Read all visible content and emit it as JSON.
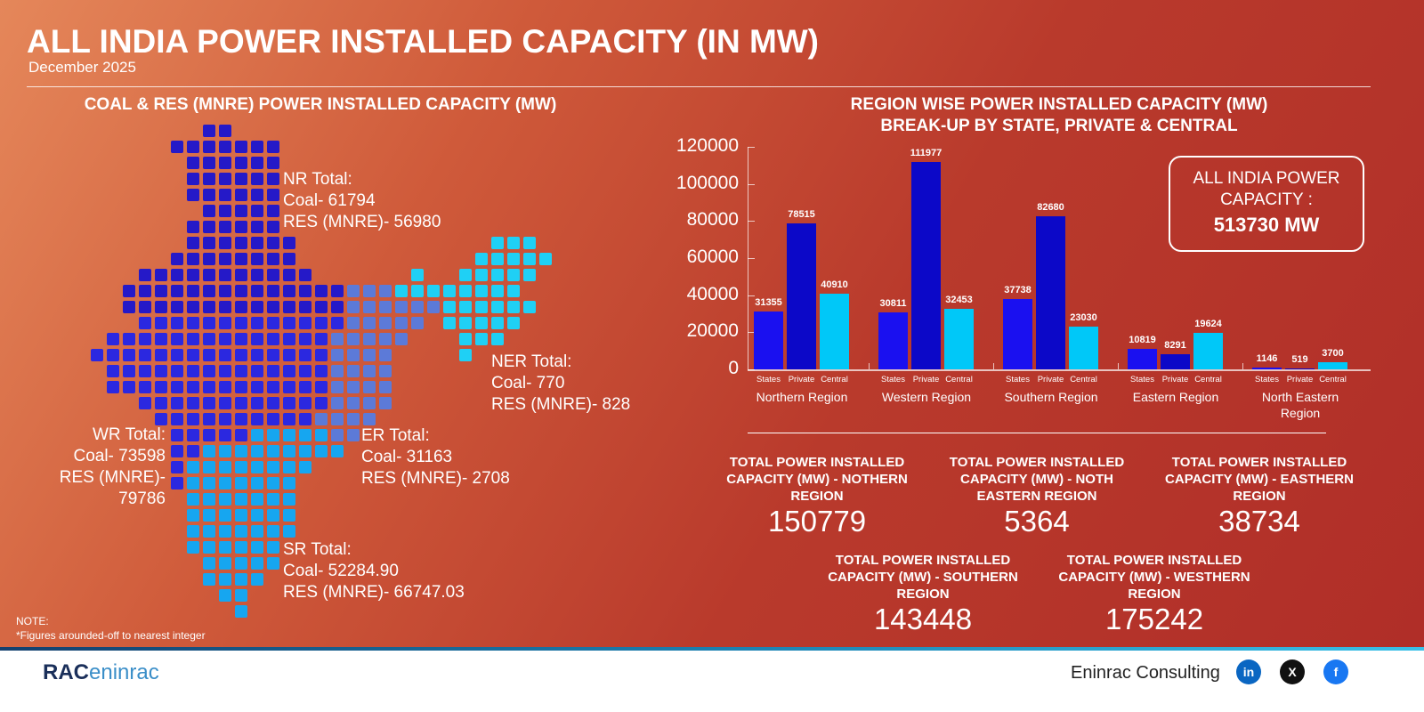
{
  "header": {
    "title": "ALL INDIA POWER INSTALLED CAPACITY (IN MW)",
    "date": "December 2025"
  },
  "map": {
    "title": "COAL & RES (MNRE) POWER INSTALLED CAPACITY (MW)",
    "colors": {
      "NR": "#2519c8",
      "WR": "#2b28e0",
      "ER": "#5c7ad8",
      "NER": "#1fd0f5",
      "SR": "#16a6f0"
    },
    "labels": {
      "nr": [
        "NR Total:",
        "Coal- 61794",
        "RES (MNRE)- 56980"
      ],
      "ner": [
        "NER Total:",
        "Coal- 770",
        "RES (MNRE)- 828"
      ],
      "wr": [
        "WR Total:",
        "Coal- 73598",
        "RES (MNRE)- 79786"
      ],
      "er": [
        "ER Total:",
        "Coal- 31163",
        "RES (MNRE)- 2708"
      ],
      "sr": [
        "SR Total:",
        "Coal- 52284.90",
        "RES (MNRE)- 66747.03"
      ]
    }
  },
  "note": [
    "NOTE:",
    "*Figures arounded-off to nearest integer"
  ],
  "chart_title": [
    "REGION WISE POWER INSTALLED CAPACITY (MW)",
    "BREAK-UP BY STATE, PRIVATE & CENTRAL"
  ],
  "chart_data": {
    "type": "bar",
    "categories": [
      "Northern Region",
      "Western Region",
      "Southern Region",
      "Eastern Region",
      "North Eastern Region"
    ],
    "subcategories": [
      "States",
      "Private",
      "Central"
    ],
    "series": [
      {
        "name": "States",
        "color": "#1a10f0",
        "values": [
          31355,
          30811,
          37738,
          10819,
          1146
        ]
      },
      {
        "name": "Private",
        "color": "#0c08c8",
        "values": [
          78515,
          111977,
          82680,
          8291,
          519
        ]
      },
      {
        "name": "Central",
        "color": "#00c8f8",
        "values": [
          40910,
          32453,
          23030,
          19624,
          3700
        ]
      }
    ],
    "ylim": [
      0,
      120000
    ],
    "yticks": [
      0,
      20000,
      40000,
      60000,
      80000,
      100000,
      120000
    ],
    "grid": false,
    "data_labels": true
  },
  "all_india": {
    "label": "ALL INDIA POWER CAPACITY :",
    "value": "513730 MW"
  },
  "totals": [
    {
      "label": "TOTAL POWER INSTALLED CAPACITY (MW) - NOTHERN REGION",
      "value": "150779"
    },
    {
      "label": "TOTAL POWER INSTALLED CAPACITY (MW) - NOTH EASTERN REGION",
      "value": "5364"
    },
    {
      "label": "TOTAL POWER INSTALLED CAPACITY (MW) - EASTHERN REGION",
      "value": "38734"
    },
    {
      "label": "TOTAL POWER INSTALLED CAPACITY (MW) - SOUTHERN REGION",
      "value": "143448"
    },
    {
      "label": "TOTAL POWER INSTALLED CAPACITY (MW) - WESTHERN REGION",
      "value": "175242"
    }
  ],
  "footer": {
    "logo_a": "RAC",
    "logo_b": "eninrac",
    "brand": "Eninrac Consulting",
    "social": [
      {
        "name": "linkedin",
        "label": "in",
        "color": "#0a66c2"
      },
      {
        "name": "x",
        "label": "X",
        "color": "#111111"
      },
      {
        "name": "facebook",
        "label": "f",
        "color": "#1877f2"
      }
    ]
  }
}
